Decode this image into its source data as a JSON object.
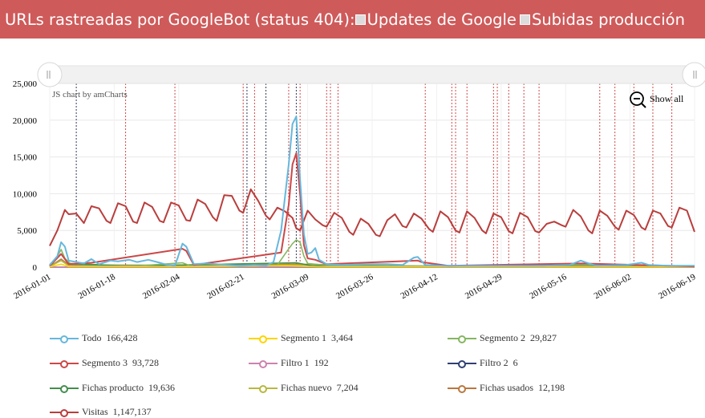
{
  "header": {
    "title": "URLs rastreadas por GoogleBot (status 404):",
    "toggle1": "Updates de Google",
    "toggle2": "Subidas producción"
  },
  "chart": {
    "credit": "JS chart by amCharts",
    "show_all": "Show all"
  },
  "colors": {
    "header_bg": "#cf5a5a",
    "todo": "#67b7dc",
    "segmento1": "#fdd400",
    "segmento2": "#84b761",
    "segmento3": "#cc4748",
    "filtro1": "#cd82ad",
    "filtro2": "#2f4074",
    "fichas_producto": "#448e4d",
    "fichas_nuevo": "#b7b83f",
    "fichas_usados": "#b9783f",
    "visitas": "#b93e3d"
  },
  "chart_data": {
    "type": "line",
    "title": "URLs rastreadas por GoogleBot (status 404)",
    "x_ticks": [
      "2016-01-01",
      "2016-01-18",
      "2016-02-04",
      "2016-02-21",
      "2016-03-09",
      "2016-03-26",
      "2016-04-12",
      "2016-04-29",
      "2016-05-16",
      "2016-06-02",
      "2016-06-19"
    ],
    "y_ticks": [
      "0",
      "5,000",
      "10,000",
      "15,000",
      "20,000",
      "25,000"
    ],
    "ylim": [
      0,
      25000
    ],
    "xlim": [
      "2016-01-01",
      "2016-06-19"
    ],
    "grid": true,
    "legend_position": "bottom",
    "series": [
      {
        "name": "Todo",
        "total": "166,428",
        "color": "#67b7dc",
        "points": [
          [
            "2016-01-01",
            300
          ],
          [
            "2016-01-03",
            1500
          ],
          [
            "2016-01-04",
            3400
          ],
          [
            "2016-01-05",
            2800
          ],
          [
            "2016-01-06",
            900
          ],
          [
            "2016-01-08",
            700
          ],
          [
            "2016-01-10",
            500
          ],
          [
            "2016-01-12",
            1100
          ],
          [
            "2016-01-14",
            400
          ],
          [
            "2016-01-17",
            900
          ],
          [
            "2016-01-19",
            800
          ],
          [
            "2016-01-22",
            1000
          ],
          [
            "2016-01-24",
            700
          ],
          [
            "2016-01-27",
            1000
          ],
          [
            "2016-01-30",
            600
          ],
          [
            "2016-02-01",
            300
          ],
          [
            "2016-02-03",
            200
          ],
          [
            "2016-02-05",
            3200
          ],
          [
            "2016-02-06",
            2800
          ],
          [
            "2016-02-08",
            400
          ],
          [
            "2016-02-11",
            500
          ],
          [
            "2016-02-14",
            400
          ],
          [
            "2016-02-17",
            300
          ],
          [
            "2016-02-20",
            200
          ],
          [
            "2016-02-24",
            300
          ],
          [
            "2016-02-27",
            200
          ],
          [
            "2016-02-29",
            700
          ],
          [
            "2016-03-02",
            5000
          ],
          [
            "2016-03-04",
            14000
          ],
          [
            "2016-03-05",
            19500
          ],
          [
            "2016-03-06",
            20500
          ],
          [
            "2016-03-07",
            12000
          ],
          [
            "2016-03-08",
            4500
          ],
          [
            "2016-03-09",
            1800
          ],
          [
            "2016-03-10",
            2000
          ],
          [
            "2016-03-11",
            2600
          ],
          [
            "2016-03-12",
            1000
          ],
          [
            "2016-03-14",
            400
          ],
          [
            "2016-03-18",
            300
          ],
          [
            "2016-03-24",
            400
          ],
          [
            "2016-03-30",
            400
          ],
          [
            "2016-04-03",
            300
          ],
          [
            "2016-04-06",
            1300
          ],
          [
            "2016-04-07",
            1400
          ],
          [
            "2016-04-09",
            300
          ],
          [
            "2016-04-14",
            200
          ],
          [
            "2016-04-20",
            200
          ],
          [
            "2016-04-27",
            200
          ],
          [
            "2016-05-04",
            200
          ],
          [
            "2016-05-10",
            200
          ],
          [
            "2016-05-17",
            300
          ],
          [
            "2016-05-20",
            900
          ],
          [
            "2016-05-21",
            700
          ],
          [
            "2016-05-24",
            200
          ],
          [
            "2016-06-01",
            300
          ],
          [
            "2016-06-05",
            600
          ],
          [
            "2016-06-07",
            300
          ],
          [
            "2016-06-12",
            200
          ],
          [
            "2016-06-19",
            200
          ]
        ]
      },
      {
        "name": "Segmento 1",
        "total": "3,464",
        "color": "#fdd400",
        "points": [
          [
            "2016-01-01",
            50
          ],
          [
            "2016-01-04",
            400
          ],
          [
            "2016-01-06",
            80
          ],
          [
            "2016-02-05",
            80
          ],
          [
            "2016-03-03",
            200
          ],
          [
            "2016-03-06",
            150
          ],
          [
            "2016-03-12",
            60
          ],
          [
            "2016-04-10",
            50
          ],
          [
            "2016-05-20",
            40
          ],
          [
            "2016-06-19",
            30
          ]
        ]
      },
      {
        "name": "Segmento 2",
        "total": "29,827",
        "color": "#84b761",
        "points": [
          [
            "2016-01-01",
            100
          ],
          [
            "2016-01-03",
            1500
          ],
          [
            "2016-01-04",
            2400
          ],
          [
            "2016-01-05",
            1200
          ],
          [
            "2016-01-07",
            200
          ],
          [
            "2016-01-15",
            150
          ],
          [
            "2016-01-25",
            200
          ],
          [
            "2016-02-05",
            600
          ],
          [
            "2016-02-07",
            200
          ],
          [
            "2016-02-20",
            100
          ],
          [
            "2016-03-01",
            300
          ],
          [
            "2016-03-04",
            2500
          ],
          [
            "2016-03-05",
            3200
          ],
          [
            "2016-03-06",
            3700
          ],
          [
            "2016-03-07",
            3400
          ],
          [
            "2016-03-08",
            1500
          ],
          [
            "2016-03-09",
            500
          ],
          [
            "2016-03-15",
            200
          ],
          [
            "2016-04-10",
            150
          ],
          [
            "2016-05-20",
            300
          ],
          [
            "2016-06-05",
            200
          ],
          [
            "2016-06-19",
            150
          ]
        ]
      },
      {
        "name": "Segmento 3",
        "total": "93,728",
        "color": "#cc4748",
        "points": [
          [
            "2016-01-01",
            200
          ],
          [
            "2016-01-04",
            1800
          ],
          [
            "2016-01-06",
            400
          ],
          [
            "2016-01-12",
            600
          ],
          [
            "2016-02-05",
            2500
          ],
          [
            "2016-02-06",
            2200
          ],
          [
            "2016-02-08",
            300
          ],
          [
            "2016-03-02",
            2000
          ],
          [
            "2016-03-04",
            8500
          ],
          [
            "2016-03-05",
            14000
          ],
          [
            "2016-03-06",
            15500
          ],
          [
            "2016-03-07",
            10000
          ],
          [
            "2016-03-08",
            3000
          ],
          [
            "2016-03-09",
            1200
          ],
          [
            "2016-03-11",
            1000
          ],
          [
            "2016-03-14",
            400
          ],
          [
            "2016-04-07",
            900
          ],
          [
            "2016-04-08",
            700
          ],
          [
            "2016-04-15",
            200
          ],
          [
            "2016-05-20",
            500
          ],
          [
            "2016-06-19",
            100
          ]
        ]
      },
      {
        "name": "Filtro 1",
        "total": "192",
        "color": "#cd82ad",
        "points": [
          [
            "2016-01-01",
            10
          ],
          [
            "2016-03-06",
            40
          ],
          [
            "2016-06-19",
            10
          ]
        ]
      },
      {
        "name": "Filtro 2",
        "total": "6",
        "color": "#2f4074",
        "points": [
          [
            "2016-01-01",
            0
          ],
          [
            "2016-06-19",
            0
          ]
        ]
      },
      {
        "name": "Fichas producto",
        "total": "19,636",
        "color": "#448e4d",
        "points": [
          [
            "2016-01-01",
            100
          ],
          [
            "2016-01-04",
            1800
          ],
          [
            "2016-01-06",
            500
          ],
          [
            "2016-01-20",
            200
          ],
          [
            "2016-02-05",
            300
          ],
          [
            "2016-03-06",
            600
          ],
          [
            "2016-03-10",
            200
          ],
          [
            "2016-04-10",
            150
          ],
          [
            "2016-06-19",
            100
          ]
        ]
      },
      {
        "name": "Fichas nuevo",
        "total": "7,204",
        "color": "#b7b83f",
        "points": [
          [
            "2016-01-01",
            80
          ],
          [
            "2016-01-04",
            900
          ],
          [
            "2016-01-06",
            200
          ],
          [
            "2016-02-05",
            200
          ],
          [
            "2016-03-06",
            300
          ],
          [
            "2016-04-10",
            100
          ],
          [
            "2016-06-19",
            60
          ]
        ]
      },
      {
        "name": "Fichas usados",
        "total": "12,198",
        "color": "#b9783f",
        "points": [
          [
            "2016-01-01",
            80
          ],
          [
            "2016-01-04",
            1100
          ],
          [
            "2016-01-06",
            300
          ],
          [
            "2016-02-05",
            250
          ],
          [
            "2016-03-06",
            400
          ],
          [
            "2016-04-10",
            120
          ],
          [
            "2016-06-19",
            80
          ]
        ]
      },
      {
        "name": "Visitas",
        "total": "1,147,137",
        "color": "#b93e3d",
        "points": [
          [
            "2016-01-01",
            2900
          ],
          [
            "2016-01-03",
            5000
          ],
          [
            "2016-01-05",
            7800
          ],
          [
            "2016-01-06",
            7200
          ],
          [
            "2016-01-08",
            7300
          ],
          [
            "2016-01-10",
            6000
          ],
          [
            "2016-01-12",
            8300
          ],
          [
            "2016-01-14",
            8000
          ],
          [
            "2016-01-16",
            6300
          ],
          [
            "2016-01-17",
            6000
          ],
          [
            "2016-01-19",
            8700
          ],
          [
            "2016-01-21",
            8300
          ],
          [
            "2016-01-23",
            6200
          ],
          [
            "2016-01-24",
            6000
          ],
          [
            "2016-01-26",
            8800
          ],
          [
            "2016-01-28",
            8200
          ],
          [
            "2016-01-30",
            6300
          ],
          [
            "2016-01-31",
            6100
          ],
          [
            "2016-02-02",
            8800
          ],
          [
            "2016-02-04",
            8400
          ],
          [
            "2016-02-06",
            6400
          ],
          [
            "2016-02-07",
            6300
          ],
          [
            "2016-02-09",
            9200
          ],
          [
            "2016-02-11",
            8600
          ],
          [
            "2016-02-13",
            6800
          ],
          [
            "2016-02-14",
            6300
          ],
          [
            "2016-02-16",
            9800
          ],
          [
            "2016-02-18",
            9700
          ],
          [
            "2016-02-20",
            7700
          ],
          [
            "2016-02-21",
            7400
          ],
          [
            "2016-02-23",
            10600
          ],
          [
            "2016-02-25",
            9000
          ],
          [
            "2016-02-27",
            7000
          ],
          [
            "2016-02-28",
            6500
          ],
          [
            "2016-03-01",
            8100
          ],
          [
            "2016-03-03",
            7600
          ],
          [
            "2016-03-05",
            6700
          ],
          [
            "2016-03-06",
            5300
          ],
          [
            "2016-03-07",
            5000
          ],
          [
            "2016-03-09",
            7700
          ],
          [
            "2016-03-11",
            6500
          ],
          [
            "2016-03-13",
            5700
          ],
          [
            "2016-03-14",
            5500
          ],
          [
            "2016-03-16",
            7400
          ],
          [
            "2016-03-18",
            6700
          ],
          [
            "2016-03-20",
            4800
          ],
          [
            "2016-03-21",
            4400
          ],
          [
            "2016-03-23",
            6600
          ],
          [
            "2016-03-25",
            5900
          ],
          [
            "2016-03-27",
            4400
          ],
          [
            "2016-03-28",
            4200
          ],
          [
            "2016-03-30",
            6400
          ],
          [
            "2016-04-01",
            7200
          ],
          [
            "2016-04-03",
            5600
          ],
          [
            "2016-04-04",
            5400
          ],
          [
            "2016-04-06",
            7300
          ],
          [
            "2016-04-08",
            6600
          ],
          [
            "2016-04-10",
            5200
          ],
          [
            "2016-04-11",
            4800
          ],
          [
            "2016-04-13",
            7600
          ],
          [
            "2016-04-15",
            6800
          ],
          [
            "2016-04-17",
            5000
          ],
          [
            "2016-04-18",
            4700
          ],
          [
            "2016-04-20",
            7600
          ],
          [
            "2016-04-22",
            6700
          ],
          [
            "2016-04-24",
            5000
          ],
          [
            "2016-04-25",
            4600
          ],
          [
            "2016-04-27",
            7300
          ],
          [
            "2016-04-29",
            6800
          ],
          [
            "2016-05-01",
            4900
          ],
          [
            "2016-05-02",
            4600
          ],
          [
            "2016-05-04",
            7400
          ],
          [
            "2016-05-06",
            6800
          ],
          [
            "2016-05-08",
            4900
          ],
          [
            "2016-05-09",
            4700
          ],
          [
            "2016-05-11",
            5900
          ],
          [
            "2016-05-13",
            6200
          ],
          [
            "2016-05-15",
            5700
          ],
          [
            "2016-05-16",
            5500
          ],
          [
            "2016-05-18",
            7800
          ],
          [
            "2016-05-20",
            6900
          ],
          [
            "2016-05-22",
            5000
          ],
          [
            "2016-05-23",
            4600
          ],
          [
            "2016-05-25",
            7700
          ],
          [
            "2016-05-27",
            7000
          ],
          [
            "2016-05-29",
            5500
          ],
          [
            "2016-05-30",
            5100
          ],
          [
            "2016-06-01",
            7700
          ],
          [
            "2016-06-03",
            7100
          ],
          [
            "2016-06-05",
            5400
          ],
          [
            "2016-06-06",
            5100
          ],
          [
            "2016-06-08",
            7700
          ],
          [
            "2016-06-10",
            7300
          ],
          [
            "2016-06-12",
            5600
          ],
          [
            "2016-06-13",
            5400
          ],
          [
            "2016-06-15",
            8100
          ],
          [
            "2016-06-17",
            7700
          ],
          [
            "2016-06-19",
            4800
          ]
        ]
      }
    ],
    "guides_updates": [
      "2016-01-08",
      "2016-02-22",
      "2016-02-27",
      "2016-03-06"
    ],
    "guides_releases": [
      "2016-01-21",
      "2016-02-03",
      "2016-02-21",
      "2016-02-24",
      "2016-03-04",
      "2016-03-07",
      "2016-03-14",
      "2016-03-15",
      "2016-03-17",
      "2016-04-09",
      "2016-04-16",
      "2016-04-17",
      "2016-04-20",
      "2016-04-27",
      "2016-04-28",
      "2016-05-01",
      "2016-05-05",
      "2016-05-09",
      "2016-05-25",
      "2016-05-29",
      "2016-06-03",
      "2016-06-08",
      "2016-06-13"
    ]
  }
}
